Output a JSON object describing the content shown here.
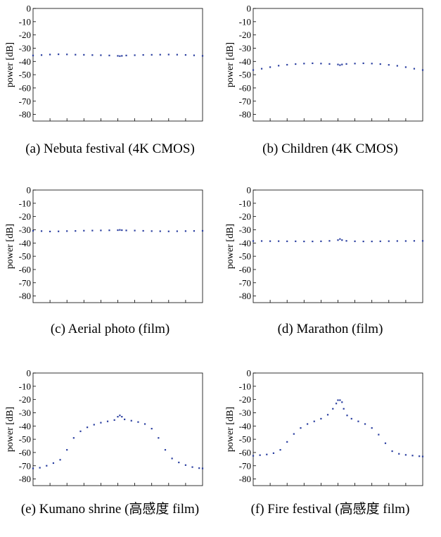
{
  "figure": {
    "panels": [
      {
        "caption": "(a) Nebuta festival (4K CMOS)",
        "chart_ref": 0
      },
      {
        "caption": "(b) Children (4K CMOS)",
        "chart_ref": 1
      },
      {
        "caption": "(c) Aerial photo (film)",
        "chart_ref": 2
      },
      {
        "caption": "(d) Marathon (film)",
        "chart_ref": 3
      },
      {
        "caption": "(e) Kumano shrine (高感度 film)",
        "chart_ref": 4
      },
      {
        "caption": "(f) Fire festival (高感度 film)",
        "chart_ref": 5
      }
    ]
  },
  "chart_data": [
    {
      "type": "scatter",
      "ylabel": "power [dB]",
      "ylim": [
        -85,
        0
      ],
      "yticks": [
        "0",
        "-10",
        "-20",
        "-30",
        "-40",
        "-50",
        "-60",
        "-70",
        "-80"
      ],
      "xtick_count": 10,
      "grid": false,
      "color": "#2b3fa0",
      "series": [
        {
          "x": [
            0,
            25,
            50,
            75,
            100,
            125,
            150,
            175,
            200,
            225,
            250,
            256,
            262,
            275,
            300,
            325,
            350,
            375,
            400,
            425,
            450,
            475,
            500
          ],
          "values": [
            -35.5,
            -35.2,
            -34.8,
            -34.6,
            -34.7,
            -34.9,
            -35.0,
            -35.2,
            -35.3,
            -35.5,
            -35.8,
            -36.0,
            -35.8,
            -35.5,
            -35.3,
            -35.1,
            -35.0,
            -34.9,
            -34.8,
            -34.9,
            -35.1,
            -35.4,
            -35.8
          ]
        }
      ]
    },
    {
      "type": "scatter",
      "ylabel": "power [dB]",
      "ylim": [
        -85,
        0
      ],
      "yticks": [
        "0",
        "-10",
        "-20",
        "-30",
        "-40",
        "-50",
        "-60",
        "-70",
        "-80"
      ],
      "xtick_count": 10,
      "grid": false,
      "color": "#2b3fa0",
      "series": [
        {
          "x": [
            0,
            25,
            50,
            75,
            100,
            125,
            150,
            175,
            200,
            225,
            250,
            256,
            262,
            275,
            300,
            325,
            350,
            375,
            400,
            425,
            450,
            475,
            500
          ],
          "values": [
            -46.5,
            -45.5,
            -44.3,
            -43.2,
            -42.5,
            -42.0,
            -41.6,
            -41.4,
            -41.6,
            -41.9,
            -42.3,
            -42.8,
            -42.3,
            -41.9,
            -41.6,
            -41.4,
            -41.6,
            -42.0,
            -42.6,
            -43.3,
            -44.3,
            -45.5,
            -46.5
          ]
        }
      ]
    },
    {
      "type": "scatter",
      "ylabel": "power [dB]",
      "ylim": [
        -85,
        0
      ],
      "yticks": [
        "0",
        "-10",
        "-20",
        "-30",
        "-40",
        "-50",
        "-60",
        "-70",
        "-80"
      ],
      "xtick_count": 10,
      "grid": false,
      "color": "#2b3fa0",
      "series": [
        {
          "x": [
            0,
            25,
            50,
            75,
            100,
            125,
            150,
            175,
            200,
            225,
            250,
            256,
            262,
            275,
            300,
            325,
            350,
            375,
            400,
            425,
            450,
            475,
            500
          ],
          "values": [
            -30.8,
            -31.0,
            -31.3,
            -31.2,
            -31.0,
            -30.9,
            -30.7,
            -30.6,
            -30.5,
            -30.4,
            -30.3,
            -30.1,
            -30.3,
            -30.5,
            -30.6,
            -30.8,
            -31.0,
            -31.1,
            -31.2,
            -31.1,
            -31.0,
            -30.9,
            -30.8
          ]
        }
      ]
    },
    {
      "type": "scatter",
      "ylabel": "power [dB]",
      "ylim": [
        -85,
        0
      ],
      "yticks": [
        "0",
        "-10",
        "-20",
        "-30",
        "-40",
        "-50",
        "-60",
        "-70",
        "-80"
      ],
      "xtick_count": 10,
      "grid": false,
      "color": "#2b3fa0",
      "series": [
        {
          "x": [
            0,
            25,
            50,
            75,
            100,
            125,
            150,
            175,
            200,
            225,
            250,
            256,
            262,
            275,
            300,
            325,
            350,
            375,
            400,
            425,
            450,
            475,
            500
          ],
          "values": [
            -38.5,
            -38.5,
            -38.6,
            -38.6,
            -38.7,
            -38.7,
            -38.8,
            -38.8,
            -38.7,
            -38.4,
            -37.8,
            -37.0,
            -37.8,
            -38.4,
            -38.7,
            -38.8,
            -38.8,
            -38.7,
            -38.6,
            -38.5,
            -38.5,
            -38.4,
            -38.4
          ]
        }
      ]
    },
    {
      "type": "scatter",
      "ylabel": "power [dB]",
      "ylim": [
        -85,
        0
      ],
      "yticks": [
        "0",
        "-10",
        "-20",
        "-30",
        "-40",
        "-50",
        "-60",
        "-70",
        "-80"
      ],
      "xtick_count": 10,
      "grid": false,
      "color": "#2b3fa0",
      "series": [
        {
          "x": [
            0,
            20,
            40,
            60,
            80,
            100,
            120,
            140,
            160,
            180,
            200,
            220,
            240,
            250,
            256,
            262,
            270,
            290,
            310,
            330,
            350,
            370,
            390,
            410,
            430,
            450,
            470,
            490,
            500
          ],
          "values": [
            -72.0,
            -71.5,
            -70.0,
            -68.0,
            -65.5,
            -58.0,
            -49.0,
            -44.0,
            -41.0,
            -39.0,
            -37.5,
            -36.5,
            -35.5,
            -33.0,
            -32.0,
            -33.0,
            -35.0,
            -36.0,
            -37.0,
            -38.5,
            -42.0,
            -49.0,
            -58.0,
            -64.5,
            -67.5,
            -69.5,
            -71.0,
            -71.8,
            -72.0
          ]
        }
      ]
    },
    {
      "type": "scatter",
      "ylabel": "power [dB]",
      "ylim": [
        -85,
        0
      ],
      "yticks": [
        "0",
        "-10",
        "-20",
        "-30",
        "-40",
        "-50",
        "-60",
        "-70",
        "-80"
      ],
      "xtick_count": 10,
      "grid": false,
      "color": "#2b3fa0",
      "series": [
        {
          "x": [
            0,
            20,
            40,
            60,
            80,
            100,
            120,
            140,
            160,
            180,
            200,
            220,
            235,
            245,
            250,
            256,
            262,
            267,
            277,
            290,
            310,
            330,
            350,
            370,
            390,
            410,
            430,
            450,
            470,
            490,
            500
          ],
          "values": [
            -62.5,
            -62.0,
            -61.5,
            -60.5,
            -58.0,
            -52.0,
            -46.0,
            -41.5,
            -38.5,
            -36.5,
            -34.5,
            -31.5,
            -27.0,
            -23.0,
            -20.5,
            -20.5,
            -22.0,
            -27.0,
            -32.0,
            -34.5,
            -36.5,
            -38.5,
            -41.5,
            -46.5,
            -53.0,
            -59.0,
            -61.0,
            -61.8,
            -62.3,
            -62.8,
            -63.0
          ]
        }
      ]
    }
  ]
}
